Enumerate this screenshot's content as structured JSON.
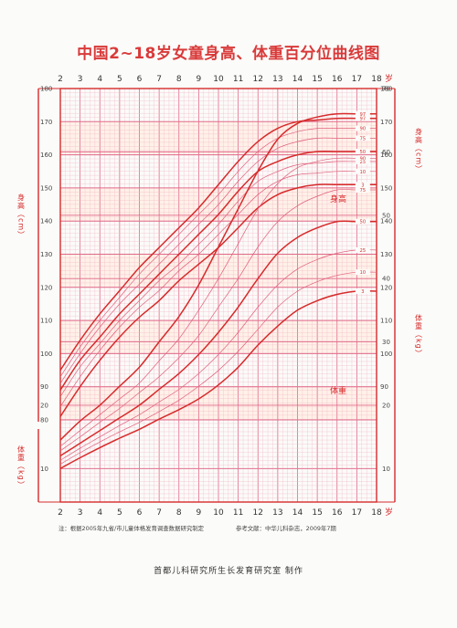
{
  "title": "中国2~18岁女童身高、体重百分位曲线图",
  "notes": {
    "left": "注：根据2005年九省/市儿童体格发育调查数据研究制定",
    "right": "参考文献：中华儿科杂志，2009年7期"
  },
  "footer": "首都儿科研究所生长发育研究室  制作",
  "colors": {
    "accent": "#d62b2b",
    "grid_major": "#e06a8a",
    "grid_minor": "#f2b8c8",
    "band": "#fff1e8"
  },
  "chart_data": {
    "type": "line",
    "x_ticks": [
      2,
      3,
      4,
      5,
      6,
      7,
      8,
      9,
      10,
      11,
      12,
      13,
      14,
      15,
      16,
      17,
      18
    ],
    "x_unit": "岁",
    "height": {
      "label": "身高",
      "axis_label_left": "身高（cm）",
      "axis_label_right": "身高（cm）",
      "ylim": [
        80,
        180
      ],
      "ticks_left": [
        80,
        90,
        100,
        110,
        120,
        130,
        140,
        150,
        160,
        170,
        180
      ],
      "ticks_right": [
        90,
        100,
        110,
        120,
        130,
        140,
        150,
        160,
        170,
        180
      ],
      "ages": [
        2,
        3,
        4,
        5,
        6,
        7,
        8,
        9,
        10,
        11,
        12,
        13,
        14,
        15,
        16,
        17,
        18
      ],
      "series": [
        {
          "name": "97",
          "values": [
            95,
            104,
            112,
            119,
            126,
            132,
            138,
            144,
            151,
            158,
            164,
            168,
            170,
            170.5,
            171,
            171,
            171
          ]
        },
        {
          "name": "90",
          "values": [
            93,
            102,
            110,
            117,
            124,
            130,
            136,
            142,
            148,
            155,
            161,
            165,
            167,
            168,
            168,
            168,
            168
          ]
        },
        {
          "name": "75",
          "values": [
            91,
            100,
            108,
            115,
            121,
            127,
            133,
            139,
            145,
            152,
            158,
            162,
            164,
            165,
            165,
            165,
            165
          ]
        },
        {
          "name": "50",
          "values": [
            89,
            98,
            105,
            112,
            118,
            124,
            130,
            136,
            142,
            149,
            155,
            158,
            160,
            161,
            161,
            161,
            161
          ]
        },
        {
          "name": "25",
          "values": [
            87,
            96,
            103,
            110,
            116,
            122,
            127,
            133,
            139,
            146,
            152,
            155,
            157,
            157.5,
            158,
            158,
            158
          ]
        },
        {
          "name": "10",
          "values": [
            84,
            93,
            101,
            108,
            114,
            119,
            125,
            130,
            136,
            142,
            148,
            152,
            154,
            154.5,
            155,
            155,
            155
          ]
        },
        {
          "name": "3",
          "values": [
            81,
            90,
            98,
            105,
            111,
            116,
            122,
            127,
            132,
            138,
            144,
            148,
            150,
            151,
            151,
            151,
            151
          ]
        }
      ]
    },
    "weight": {
      "label": "体重",
      "axis_label_left": "体重（kg）",
      "axis_label_right": "体重（kg）",
      "ylim": [
        5,
        70
      ],
      "ticks_left": [
        10,
        20
      ],
      "ticks_right": [
        10,
        20,
        30,
        40,
        50,
        60,
        70
      ],
      "ages": [
        2,
        3,
        4,
        5,
        6,
        7,
        8,
        9,
        10,
        11,
        12,
        13,
        14,
        15,
        16,
        17,
        18
      ],
      "series": [
        {
          "name": "97",
          "values": [
            14.5,
            17.5,
            20,
            23,
            26,
            30,
            34,
            39,
            45,
            51,
            57,
            62,
            64.5,
            65.5,
            66,
            66,
            66
          ]
        },
        {
          "name": "90",
          "values": [
            13.5,
            16,
            18.5,
            21,
            23.5,
            27,
            30.5,
            35,
            40,
            45.5,
            51,
            55,
            57.5,
            58.5,
            59,
            59,
            59
          ]
        },
        {
          "name": "75",
          "values": [
            12.8,
            15,
            17.3,
            19.5,
            22,
            24.5,
            27.5,
            31,
            35.5,
            40,
            45,
            49,
            51.5,
            53,
            54,
            54,
            54
          ]
        },
        {
          "name": "50",
          "values": [
            12,
            14,
            16,
            18,
            20,
            22.5,
            25,
            28,
            31.5,
            35.5,
            40,
            44,
            46.5,
            48,
            49,
            49,
            49
          ]
        },
        {
          "name": "25",
          "values": [
            11.3,
            13.2,
            15,
            16.8,
            18.5,
            20.5,
            22.5,
            25,
            28,
            31.5,
            35.5,
            39,
            41.5,
            43,
            44,
            44.5,
            44.5
          ]
        },
        {
          "name": "10",
          "values": [
            10.7,
            12.5,
            14.2,
            15.8,
            17.3,
            19,
            20.8,
            23,
            25.5,
            28.5,
            32,
            35.5,
            38,
            39.5,
            40.5,
            41,
            41
          ]
        },
        {
          "name": "3",
          "values": [
            10,
            11.7,
            13.3,
            14.8,
            16.2,
            17.8,
            19.3,
            21,
            23.2,
            26,
            29.5,
            32.5,
            35,
            36.5,
            37.5,
            38,
            38
          ]
        }
      ]
    }
  }
}
